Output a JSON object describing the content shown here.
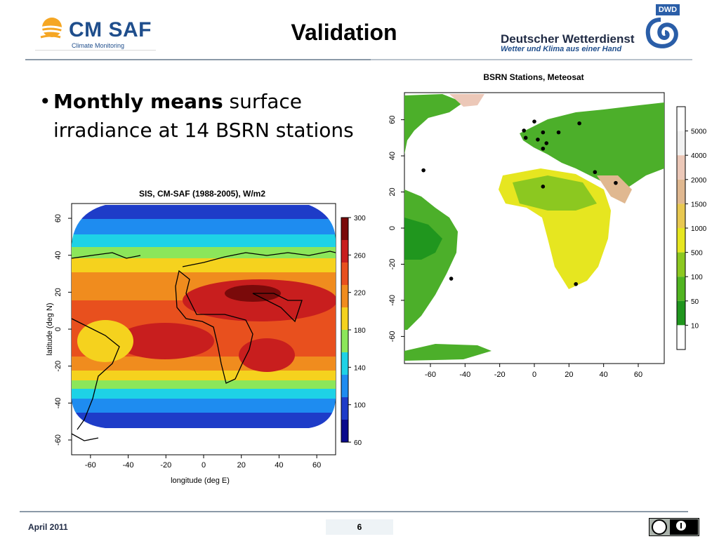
{
  "header": {
    "logo_left": {
      "name": "CM SAF",
      "subtitle": "Climate Monitoring"
    },
    "title": "Validation",
    "logo_right": {
      "badge": "DWD",
      "name": "Deutscher Wetterdienst",
      "slogan": "Wetter und Klima aus einer Hand"
    }
  },
  "bullet": {
    "bold": "Monthly means",
    "rest": " surface irradiance at 14 BSRN stations"
  },
  "footer": {
    "date": "April 2011",
    "page": "6"
  },
  "chart_data": [
    {
      "type": "heatmap",
      "title": "SIS, CM-SAF (1988-2005), W/m2",
      "xlabel": "longitude (deg E)",
      "ylabel": "latitude (deg N)",
      "xticks": [
        "-60",
        "-40",
        "-20",
        "0",
        "20",
        "40",
        "60"
      ],
      "yticks": [
        "60",
        "40",
        "20",
        "0",
        "-20",
        "-40",
        "-60"
      ],
      "xlim": [
        -70,
        70
      ],
      "ylim": [
        -68,
        68
      ],
      "colorbar": {
        "ticks": [
          "300",
          "260",
          "220",
          "180",
          "140",
          "100",
          "60"
        ],
        "colors": [
          "#7a0a0a",
          "#c81e1e",
          "#e8501e",
          "#f08c1e",
          "#f5d21e",
          "#8ce65a",
          "#1ed2e6",
          "#1e8cf0",
          "#1e3cc8",
          "#0a0a8c"
        ]
      }
    },
    {
      "type": "scatter",
      "title": "BSRN Stations, Meteosat",
      "xticks": [
        "-60",
        "-40",
        "-20",
        "0",
        "20",
        "40",
        "60"
      ],
      "yticks": [
        "60",
        "40",
        "20",
        "0",
        "-20",
        "-40",
        "-60"
      ],
      "xlim": [
        -75,
        75
      ],
      "ylim": [
        -75,
        75
      ],
      "stations": [
        {
          "lon": 0,
          "lat": 59
        },
        {
          "lon": -6,
          "lat": 54
        },
        {
          "lon": 5,
          "lat": 53
        },
        {
          "lon": 14,
          "lat": 53
        },
        {
          "lon": 26,
          "lat": 58
        },
        {
          "lon": -5,
          "lat": 50
        },
        {
          "lon": 2,
          "lat": 49
        },
        {
          "lon": 7,
          "lat": 47
        },
        {
          "lon": 5,
          "lat": 44
        },
        {
          "lon": -64,
          "lat": 32
        },
        {
          "lon": 35,
          "lat": 31
        },
        {
          "lon": 47,
          "lat": 25
        },
        {
          "lon": 5,
          "lat": 23
        },
        {
          "lon": -48,
          "lat": -28
        },
        {
          "lon": 24,
          "lat": -31
        }
      ],
      "colorbar": {
        "ticks": [
          "5000",
          "4000",
          "2000",
          "1500",
          "1000",
          "500",
          "100",
          "50",
          "10"
        ],
        "colors": [
          "#ffffff",
          "#f2f2f2",
          "#ecc8b8",
          "#e0b890",
          "#e8c850",
          "#e6e620",
          "#8cc820",
          "#50b420",
          "#20961e",
          "#ffffff"
        ]
      }
    }
  ],
  "colors": {
    "rule": "#8b99a8",
    "brand_blue": "#1f4e8c",
    "sea": "#ffffff",
    "land_green": "#4caf2a"
  }
}
